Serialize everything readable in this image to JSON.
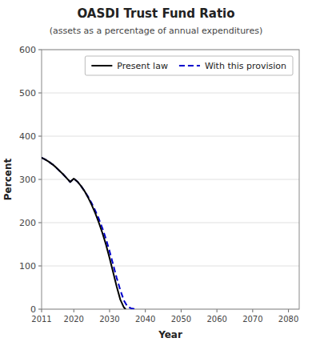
{
  "chart_data": {
    "type": "line",
    "title": "OASDI Trust Fund Ratio",
    "subtitle": "(assets as a percentage of annual expenditures)",
    "xlabel": "Year",
    "ylabel": "Percent",
    "xlim": [
      2011,
      2083
    ],
    "ylim": [
      0,
      600
    ],
    "xticks": [
      2011,
      2020,
      2030,
      2040,
      2050,
      2060,
      2070,
      2080
    ],
    "yticks": [
      0,
      100,
      200,
      300,
      400,
      500,
      600
    ],
    "grid": "y",
    "legend": "upper right",
    "series": [
      {
        "name": "Present law",
        "color": "#000000",
        "line_style": "solid",
        "x": [
          2011,
          2012,
          2013,
          2014,
          2015,
          2016,
          2017,
          2018,
          2019,
          2020,
          2021,
          2022,
          2023,
          2024,
          2025,
          2026,
          2027,
          2028,
          2029,
          2030,
          2031,
          2032,
          2033,
          2034,
          2034.5
        ],
        "values": [
          350,
          346,
          341,
          335,
          328,
          320,
          312,
          303,
          294,
          302,
          295,
          285,
          273,
          258,
          241,
          222,
          200,
          176,
          149,
          118,
          85,
          52,
          22,
          4,
          0
        ]
      },
      {
        "name": "With this provision",
        "color": "#0000cc",
        "line_style": "dashed",
        "x": [
          2011,
          2012,
          2013,
          2014,
          2015,
          2016,
          2017,
          2018,
          2019,
          2020,
          2021,
          2022,
          2023,
          2024,
          2025,
          2026,
          2027,
          2028,
          2029,
          2030,
          2031,
          2032,
          2033,
          2034,
          2035,
          2036,
          2037,
          2037.5
        ],
        "values": [
          350,
          346,
          341,
          335,
          328,
          320,
          312,
          303,
          294,
          302,
          295,
          285,
          273,
          260,
          245,
          228,
          209,
          187,
          162,
          134,
          103,
          72,
          44,
          20,
          6,
          2,
          0.5,
          0
        ]
      }
    ]
  }
}
